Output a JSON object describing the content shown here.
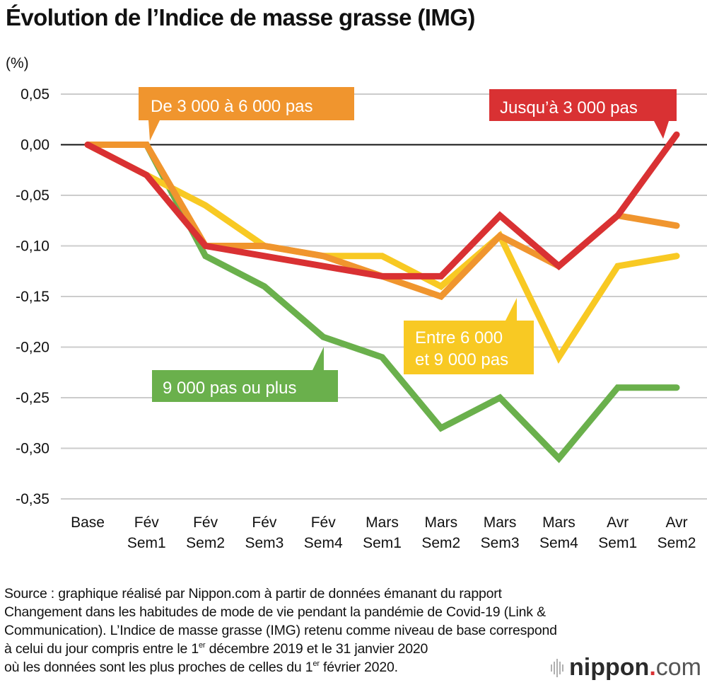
{
  "title": "Évolution de l’Indice de masse grasse (IMG)",
  "unit_label": "(%)",
  "source": {
    "lines": [
      "Source : graphique réalisé par Nippon.com à partir de données émanant du rapport",
      "Changement dans les habitudes de mode de vie pendant la pandémie de Covid-19 (Link &",
      "Communication). L’Indice de masse grasse (IMG) retenu comme niveau de base correspond"
    ],
    "line4_pre": "à celui du jour compris entre le 1",
    "line4_sup": "er",
    "line4_post": " décembre 2019 et le 31 janvier 2020",
    "line5_pre": "où les données sont les plus proches de celles du 1",
    "line5_sup": "er",
    "line5_post": " février 2020."
  },
  "logo": {
    "name": "nippon",
    "dot": ".",
    "tld": "com"
  },
  "chart_data": {
    "type": "line",
    "title": "Évolution de l’Indice de masse grasse (IMG)",
    "xlabel": "",
    "ylabel": "(%)",
    "ylim": [
      -0.35,
      0.05
    ],
    "yticks": [
      0.05,
      0.0,
      -0.05,
      -0.1,
      -0.15,
      -0.2,
      -0.25,
      -0.3,
      -0.35
    ],
    "ytick_labels": [
      "0,05",
      "0,00",
      "-0,05",
      "-0,10",
      "-0,15",
      "-0,20",
      "-0,25",
      "-0,30",
      "-0,35"
    ],
    "grid": true,
    "categories": [
      [
        "Base",
        ""
      ],
      [
        "Fév",
        "Sem1"
      ],
      [
        "Fév",
        "Sem2"
      ],
      [
        "Fév",
        "Sem3"
      ],
      [
        "Fév",
        "Sem4"
      ],
      [
        "Mars",
        "Sem1"
      ],
      [
        "Mars",
        "Sem2"
      ],
      [
        "Mars",
        "Sem3"
      ],
      [
        "Mars",
        "Sem4"
      ],
      [
        "Avr",
        "Sem1"
      ],
      [
        "Avr",
        "Sem2"
      ]
    ],
    "series": [
      {
        "name": "9 000 pas ou plus",
        "color": "#6ab04c",
        "values": [
          0,
          0,
          -0.11,
          -0.14,
          -0.19,
          -0.21,
          -0.28,
          -0.25,
          -0.31,
          -0.24,
          -0.24
        ]
      },
      {
        "name": "Entre 6 000 et 9 000 pas",
        "label_lines": [
          "Entre 6 000",
          "et 9 000 pas"
        ],
        "color": "#f8c923",
        "values": [
          0,
          -0.03,
          -0.06,
          -0.1,
          -0.11,
          -0.11,
          -0.14,
          -0.09,
          -0.21,
          -0.12,
          -0.11
        ]
      },
      {
        "name": "De 3 000 à 6 000 pas",
        "color": "#f0952e",
        "values": [
          0,
          0,
          -0.1,
          -0.1,
          -0.11,
          -0.13,
          -0.15,
          -0.09,
          -0.12,
          -0.07,
          -0.08
        ]
      },
      {
        "name": "Jusqu’à 3 000 pas",
        "color": "#d93133",
        "values": [
          0,
          -0.03,
          -0.1,
          -0.11,
          -0.12,
          -0.13,
          -0.13,
          -0.07,
          -0.12,
          -0.07,
          0.01
        ]
      }
    ],
    "legend": "callouts on lines"
  }
}
